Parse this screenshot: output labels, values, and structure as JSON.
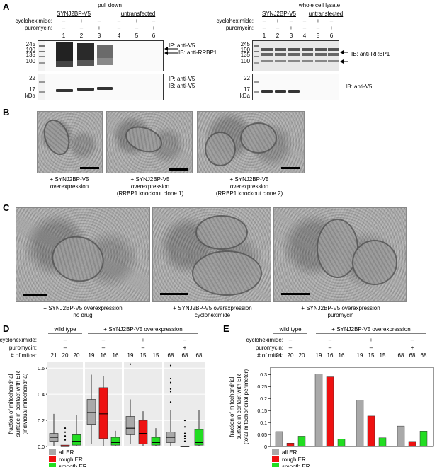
{
  "panel_labels": {
    "A": "A",
    "B": "B",
    "C": "C",
    "D": "D",
    "E": "E"
  },
  "panelA": {
    "left": {
      "title": "pull down",
      "group1": "SYNJ2BP-V5",
      "group2": "untransfected",
      "row1_label": "cycloheximide:",
      "row2_label": "puromycin:",
      "row1": [
        "–",
        "+",
        "–",
        "–",
        "+",
        "–"
      ],
      "row2": [
        "–",
        "–",
        "+",
        "–",
        "–",
        "+"
      ],
      "lanes": [
        "1",
        "2",
        "3",
        "4",
        "5",
        "6"
      ],
      "mw_top": [
        "245",
        "190",
        "135",
        "100"
      ],
      "mw_bottom": [
        "22",
        "17"
      ],
      "kda": "kDa",
      "ann_top_1": "IP: anti-V5",
      "ann_top_2": "IB: anti-RRBP1",
      "ann_bot_1": "IP: anti-V5",
      "ann_bot_2": "IB: anti-V5"
    },
    "right": {
      "title": "whole cell lysate",
      "group1": "SYNJ2BP-V5",
      "group2": "untransfected",
      "row1_label": "cycloheximide:",
      "row2_label": "puromycin:",
      "row1": [
        "–",
        "+",
        "–",
        "–",
        "+",
        "–"
      ],
      "row2": [
        "–",
        "–",
        "+",
        "–",
        "–",
        "+"
      ],
      "lanes": [
        "1",
        "2",
        "3",
        "4",
        "5",
        "6"
      ],
      "mw_top": [
        "245",
        "190",
        "135",
        "100"
      ],
      "mw_bottom": [
        "22",
        "17"
      ],
      "kda": "kDa",
      "ann_top": "IB: anti-RRBP1",
      "ann_bot": "IB: anti-V5"
    }
  },
  "panelB": {
    "captions": [
      [
        "+ SYNJ2BP-V5",
        "overexpression"
      ],
      [
        "+ SYNJ2BP-V5",
        "overexpression",
        "(RRBP1 knockout clone 1)"
      ],
      [
        "+ SYNJ2BP-V5",
        "overexpression",
        "(RRBP1 knockout clone 2)"
      ]
    ]
  },
  "panelC": {
    "captions": [
      [
        "+ SYNJ2BP-V5 overexpression",
        "no drug"
      ],
      [
        "+ SYNJ2BP-V5 overexpression",
        "cycloheximide"
      ],
      [
        "+ SYNJ2BP-V5 overexpression",
        "puromycin"
      ]
    ]
  },
  "panelD": {
    "group1": "wild type",
    "group2": "+ SYNJ2BP-V5 overexpression",
    "row1_label": "cycloheximide:",
    "row2_label": "puromycin:",
    "row3_label": "# of mitos:",
    "row1": [
      "–",
      "+",
      "–"
    ],
    "row2": [
      "–",
      "–",
      "+"
    ],
    "row3": [
      "21",
      "20",
      "20",
      "19",
      "16",
      "16",
      "19",
      "15",
      "15",
      "68",
      "68",
      "68"
    ],
    "ylabel_1": "fraction of mitochondrial",
    "ylabel_2": "surface in contact with ER",
    "ylabel_3": "(individual mitochondria)",
    "yticks": [
      "0.0",
      "0.2",
      "0.4",
      "0.6"
    ],
    "legend": [
      "all ER",
      "rough ER",
      "smooth ER"
    ]
  },
  "panelE": {
    "group1": "wild type",
    "group2": "+ SYNJ2BP-V5 overexpression",
    "row1_label": "cycloheximide:",
    "row2_label": "puromycin:",
    "row3_label": "# of mitos:",
    "row1": [
      "–",
      "+",
      "–"
    ],
    "row2": [
      "–",
      "–",
      "+"
    ],
    "row3": [
      "21",
      "20",
      "20",
      "19",
      "16",
      "16",
      "19",
      "15",
      "15",
      "68",
      "68",
      "68"
    ],
    "ylabel_1": "fraction of mitochondrial",
    "ylabel_2": "surface in contact with ER",
    "ylabel_3": "(total mitochondrial perimeter)",
    "legend": [
      "all ER",
      "rough ER",
      "smooth ER"
    ]
  },
  "colors": {
    "all_er": "#a9a9a9",
    "rough_er": "#ee1111",
    "smooth_er": "#22dd22",
    "grey_panel": "#ebebeb"
  },
  "chart_data": [
    {
      "type": "box",
      "panel": "D",
      "groups": [
        "wild type",
        "+ SYNJ2BP-V5 overexpression",
        "cycloheximide",
        "puromycin"
      ],
      "ylim": [
        0,
        0.65
      ],
      "series": [
        {
          "name": "all ER",
          "boxes": [
            {
              "lo": 0.0,
              "q1": 0.04,
              "med": 0.07,
              "q3": 0.1,
              "hi": 0.25,
              "outliers": []
            },
            {
              "lo": 0.02,
              "q1": 0.17,
              "med": 0.26,
              "q3": 0.36,
              "hi": 0.55,
              "outliers": []
            },
            {
              "lo": 0.02,
              "q1": 0.09,
              "med": 0.14,
              "q3": 0.23,
              "hi": 0.36,
              "outliers": [
                0.63
              ]
            },
            {
              "lo": 0.0,
              "q1": 0.03,
              "med": 0.07,
              "q3": 0.11,
              "hi": 0.28,
              "outliers": [
                0.34,
                0.42,
                0.44,
                0.49,
                0.52,
                0.62
              ]
            }
          ]
        },
        {
          "name": "rough ER",
          "boxes": [
            {
              "lo": 0.0,
              "q1": 0.0,
              "med": 0.0,
              "q3": 0.01,
              "hi": 0.01,
              "outliers": [
                0.05,
                0.08,
                0.11,
                0.14
              ]
            },
            {
              "lo": 0.0,
              "q1": 0.06,
              "med": 0.25,
              "q3": 0.45,
              "hi": 0.54,
              "outliers": []
            },
            {
              "lo": 0.0,
              "q1": 0.02,
              "med": 0.1,
              "q3": 0.2,
              "hi": 0.27,
              "outliers": []
            },
            {
              "lo": 0.0,
              "q1": 0.0,
              "med": 0.0,
              "q3": 0.0,
              "hi": 0.0,
              "outliers": [
                0.04,
                0.06,
                0.08,
                0.1,
                0.15,
                0.2
              ]
            }
          ]
        },
        {
          "name": "smooth ER",
          "boxes": [
            {
              "lo": 0.0,
              "q1": 0.01,
              "med": 0.04,
              "q3": 0.09,
              "hi": 0.24,
              "outliers": []
            },
            {
              "lo": 0.0,
              "q1": 0.01,
              "med": 0.03,
              "q3": 0.07,
              "hi": 0.12,
              "outliers": []
            },
            {
              "lo": 0.0,
              "q1": 0.01,
              "med": 0.03,
              "q3": 0.07,
              "hi": 0.14,
              "outliers": []
            },
            {
              "lo": 0.0,
              "q1": 0.01,
              "med": 0.03,
              "q3": 0.13,
              "hi": 0.28,
              "outliers": []
            }
          ]
        }
      ]
    },
    {
      "type": "bar",
      "panel": "E",
      "categories": [
        "wild type",
        "+ SYNJ2BP-V5 overexpression",
        "cycloheximide",
        "puromycin"
      ],
      "yticks": [
        0,
        0.05,
        0.1,
        0.15,
        0.2,
        0.25,
        0.3
      ],
      "ylim": [
        0,
        0.33
      ],
      "series": [
        {
          "name": "all ER",
          "values": [
            0.062,
            0.302,
            0.193,
            0.085
          ]
        },
        {
          "name": "rough ER",
          "values": [
            0.014,
            0.29,
            0.127,
            0.021
          ]
        },
        {
          "name": "smooth ER",
          "values": [
            0.043,
            0.031,
            0.036,
            0.064
          ]
        }
      ]
    }
  ]
}
